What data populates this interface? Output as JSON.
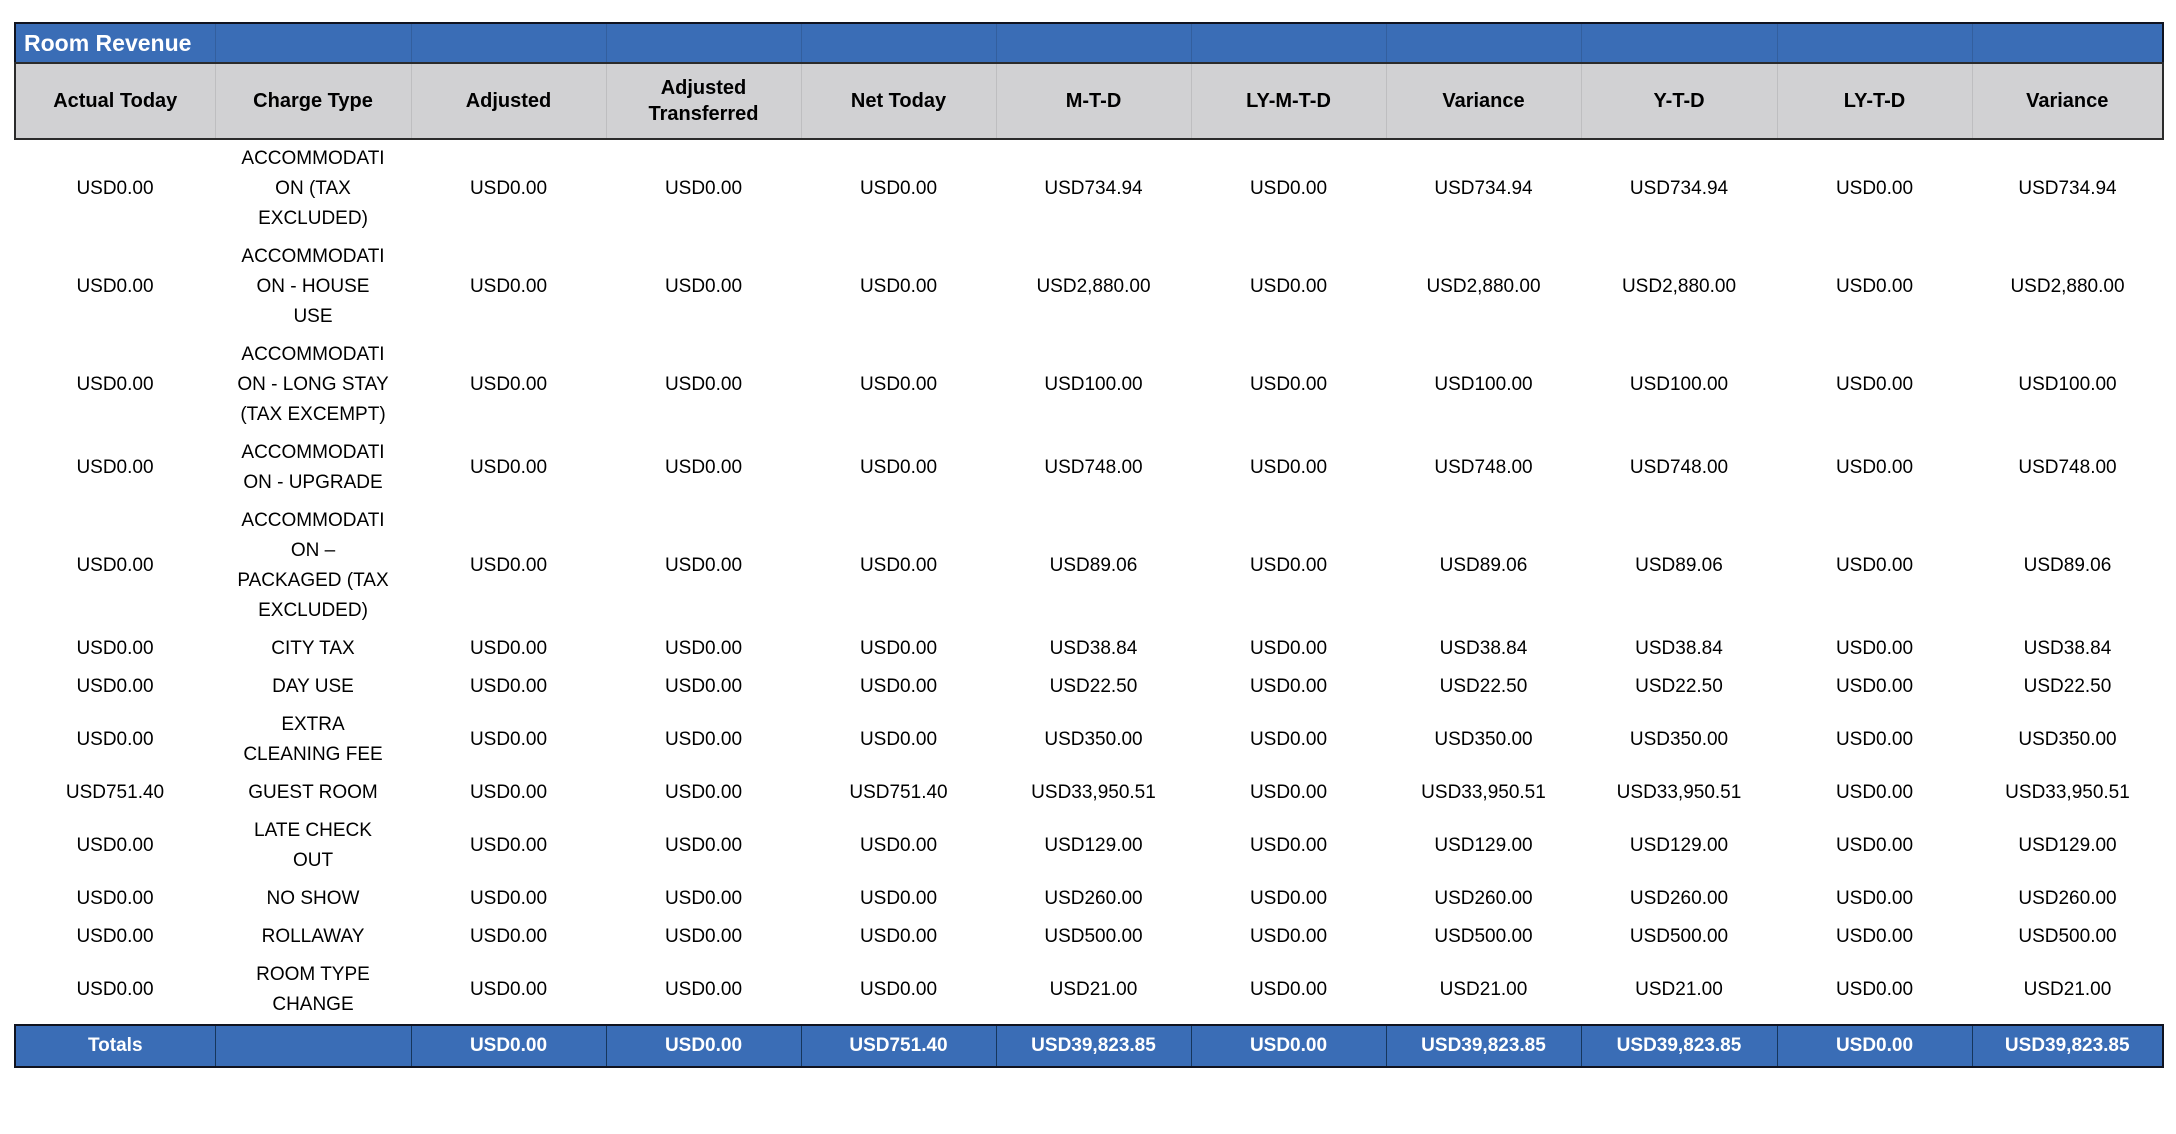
{
  "colors": {
    "accent_blue": "#3a6db6",
    "header_gray": "#d1d1d3",
    "title_text": "#ffffff",
    "totals_text": "#ffffff",
    "body_text": "#000000"
  },
  "table": {
    "title": "Room Revenue",
    "columns": [
      "Actual Today",
      "Charge Type",
      "Adjusted",
      "Adjusted Transferred",
      "Net Today",
      "M-T-D",
      "LY-M-T-D",
      "Variance",
      "Y-T-D",
      "LY-T-D",
      "Variance"
    ],
    "rows": [
      [
        "USD0.00",
        "ACCOMMODATION (TAX EXCLUDED)",
        "USD0.00",
        "USD0.00",
        "USD0.00",
        "USD734.94",
        "USD0.00",
        "USD734.94",
        "USD734.94",
        "USD0.00",
        "USD734.94"
      ],
      [
        "USD0.00",
        "ACCOMMODATION - HOUSE USE",
        "USD0.00",
        "USD0.00",
        "USD0.00",
        "USD2,880.00",
        "USD0.00",
        "USD2,880.00",
        "USD2,880.00",
        "USD0.00",
        "USD2,880.00"
      ],
      [
        "USD0.00",
        "ACCOMMODATION - LONG STAY (TAX EXCEMPT)",
        "USD0.00",
        "USD0.00",
        "USD0.00",
        "USD100.00",
        "USD0.00",
        "USD100.00",
        "USD100.00",
        "USD0.00",
        "USD100.00"
      ],
      [
        "USD0.00",
        "ACCOMMODATION - UPGRADE",
        "USD0.00",
        "USD0.00",
        "USD0.00",
        "USD748.00",
        "USD0.00",
        "USD748.00",
        "USD748.00",
        "USD0.00",
        "USD748.00"
      ],
      [
        "USD0.00",
        "ACCOMMODATION – PACKAGED (TAX EXCLUDED)",
        "USD0.00",
        "USD0.00",
        "USD0.00",
        "USD89.06",
        "USD0.00",
        "USD89.06",
        "USD89.06",
        "USD0.00",
        "USD89.06"
      ],
      [
        "USD0.00",
        "CITY TAX",
        "USD0.00",
        "USD0.00",
        "USD0.00",
        "USD38.84",
        "USD0.00",
        "USD38.84",
        "USD38.84",
        "USD0.00",
        "USD38.84"
      ],
      [
        "USD0.00",
        "DAY USE",
        "USD0.00",
        "USD0.00",
        "USD0.00",
        "USD22.50",
        "USD0.00",
        "USD22.50",
        "USD22.50",
        "USD0.00",
        "USD22.50"
      ],
      [
        "USD0.00",
        "EXTRA CLEANING FEE",
        "USD0.00",
        "USD0.00",
        "USD0.00",
        "USD350.00",
        "USD0.00",
        "USD350.00",
        "USD350.00",
        "USD0.00",
        "USD350.00"
      ],
      [
        "USD751.40",
        "GUEST ROOM",
        "USD0.00",
        "USD0.00",
        "USD751.40",
        "USD33,950.51",
        "USD0.00",
        "USD33,950.51",
        "USD33,950.51",
        "USD0.00",
        "USD33,950.51"
      ],
      [
        "USD0.00",
        "LATE CHECK OUT",
        "USD0.00",
        "USD0.00",
        "USD0.00",
        "USD129.00",
        "USD0.00",
        "USD129.00",
        "USD129.00",
        "USD0.00",
        "USD129.00"
      ],
      [
        "USD0.00",
        "NO SHOW",
        "USD0.00",
        "USD0.00",
        "USD0.00",
        "USD260.00",
        "USD0.00",
        "USD260.00",
        "USD260.00",
        "USD0.00",
        "USD260.00"
      ],
      [
        "USD0.00",
        "ROLLAWAY",
        "USD0.00",
        "USD0.00",
        "USD0.00",
        "USD500.00",
        "USD0.00",
        "USD500.00",
        "USD500.00",
        "USD0.00",
        "USD500.00"
      ],
      [
        "USD0.00",
        "ROOM TYPE CHANGE",
        "USD0.00",
        "USD0.00",
        "USD0.00",
        "USD21.00",
        "USD0.00",
        "USD21.00",
        "USD21.00",
        "USD0.00",
        "USD21.00"
      ]
    ],
    "totals": {
      "label": "Totals",
      "values": [
        "",
        "USD0.00",
        "USD0.00",
        "USD751.40",
        "USD39,823.85",
        "USD0.00",
        "USD39,823.85",
        "USD39,823.85",
        "USD0.00",
        "USD39,823.85"
      ]
    }
  }
}
